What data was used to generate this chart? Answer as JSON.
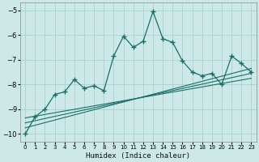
{
  "xlabel": "Humidex (Indice chaleur)",
  "background_color": "#cce9e8",
  "grid_color": "#aad4d2",
  "line_color": "#1a6e68",
  "xlim": [
    -0.5,
    23.5
  ],
  "ylim": [
    -10.3,
    -4.7
  ],
  "yticks": [
    -10,
    -9,
    -8,
    -7,
    -6,
    -5
  ],
  "xticks": [
    0,
    1,
    2,
    3,
    4,
    5,
    6,
    7,
    8,
    9,
    10,
    11,
    12,
    13,
    14,
    15,
    16,
    17,
    18,
    19,
    20,
    21,
    22,
    23
  ],
  "main_x": [
    0,
    1,
    2,
    3,
    4,
    5,
    6,
    7,
    8,
    9,
    10,
    11,
    12,
    13,
    14,
    15,
    16,
    17,
    18,
    19,
    20,
    21,
    22,
    23
  ],
  "main_y": [
    -10.0,
    -9.3,
    -9.0,
    -8.4,
    -8.3,
    -7.8,
    -8.15,
    -8.05,
    -8.25,
    -6.85,
    -6.05,
    -6.5,
    -6.25,
    -5.05,
    -6.15,
    -6.3,
    -7.05,
    -7.5,
    -7.65,
    -7.55,
    -8.0,
    -6.85,
    -7.15,
    -7.5
  ],
  "line1_x": [
    0,
    23
  ],
  "line1_y": [
    -9.75,
    -7.35
  ],
  "line2_x": [
    0,
    23
  ],
  "line2_y": [
    -9.55,
    -7.55
  ],
  "line3_x": [
    0,
    23
  ],
  "line3_y": [
    -9.35,
    -7.75
  ]
}
